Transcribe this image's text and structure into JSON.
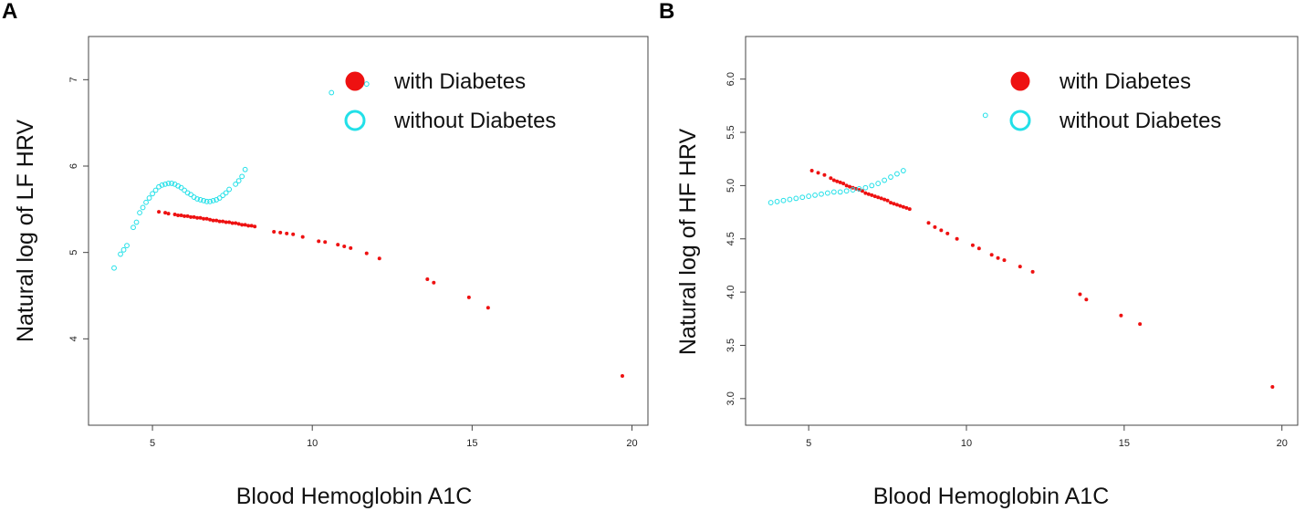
{
  "colors": {
    "with": "#ee1111",
    "without": "#22e0e8"
  },
  "chart_data": [
    {
      "type": "scatter",
      "panel": "A",
      "xlabel": "Blood Hemoglobin A1C",
      "ylabel": "Natural log of LF HRV",
      "xlim": [
        3.0,
        20.5
      ],
      "ylim": [
        3.0,
        7.5
      ],
      "xticks": [
        5,
        10,
        15,
        20
      ],
      "yticks": [
        4,
        5,
        6,
        7
      ],
      "legend": {
        "placement": "top-right",
        "entries": [
          "with Diabetes",
          "without Diabetes"
        ]
      },
      "series": [
        {
          "name": "with Diabetes",
          "marker": "filled",
          "x": [
            5.2,
            5.4,
            5.5,
            5.7,
            5.8,
            5.9,
            6.0,
            6.1,
            6.2,
            6.3,
            6.4,
            6.5,
            6.6,
            6.7,
            6.8,
            6.9,
            7.0,
            7.1,
            7.2,
            7.3,
            7.4,
            7.5,
            7.6,
            7.7,
            7.8,
            7.9,
            8.0,
            8.1,
            8.2,
            8.8,
            9.0,
            9.2,
            9.4,
            9.7,
            10.2,
            10.4,
            10.8,
            11.0,
            11.2,
            11.7,
            12.1,
            13.6,
            13.8,
            14.9,
            15.5,
            19.7
          ],
          "y": [
            5.47,
            5.46,
            5.45,
            5.44,
            5.43,
            5.43,
            5.42,
            5.42,
            5.41,
            5.41,
            5.4,
            5.4,
            5.39,
            5.39,
            5.38,
            5.37,
            5.37,
            5.36,
            5.36,
            5.35,
            5.35,
            5.34,
            5.34,
            5.33,
            5.32,
            5.32,
            5.31,
            5.31,
            5.3,
            5.24,
            5.23,
            5.22,
            5.21,
            5.18,
            5.13,
            5.12,
            5.09,
            5.07,
            5.05,
            4.99,
            4.93,
            4.69,
            4.65,
            4.48,
            4.36,
            3.57
          ]
        },
        {
          "name": "without Diabetes",
          "marker": "open",
          "x": [
            3.8,
            4.0,
            4.1,
            4.2,
            4.4,
            4.5,
            4.6,
            4.7,
            4.8,
            4.9,
            5.0,
            5.1,
            5.2,
            5.3,
            5.4,
            5.5,
            5.6,
            5.7,
            5.8,
            5.9,
            6.0,
            6.1,
            6.2,
            6.3,
            6.4,
            6.5,
            6.6,
            6.7,
            6.8,
            6.9,
            7.0,
            7.1,
            7.2,
            7.3,
            7.4,
            7.6,
            7.7,
            7.8,
            7.9,
            10.6,
            11.7
          ],
          "y": [
            4.82,
            4.98,
            5.03,
            5.08,
            5.29,
            5.35,
            5.46,
            5.52,
            5.58,
            5.63,
            5.68,
            5.72,
            5.76,
            5.78,
            5.79,
            5.8,
            5.8,
            5.79,
            5.77,
            5.75,
            5.72,
            5.69,
            5.67,
            5.64,
            5.62,
            5.61,
            5.6,
            5.59,
            5.59,
            5.6,
            5.61,
            5.63,
            5.66,
            5.69,
            5.73,
            5.79,
            5.83,
            5.88,
            5.96,
            6.85,
            6.95
          ]
        }
      ]
    },
    {
      "type": "scatter",
      "panel": "B",
      "xlabel": "Blood Hemoglobin A1C",
      "ylabel": "Natural log of HF HRV",
      "xlim": [
        3.0,
        20.5
      ],
      "ylim": [
        2.75,
        6.4
      ],
      "xticks": [
        5,
        10,
        15,
        20
      ],
      "yticks": [
        3.0,
        3.5,
        4.0,
        4.5,
        5.0,
        5.5,
        6.0
      ],
      "legend": {
        "placement": "top-right",
        "entries": [
          "with Diabetes",
          "without Diabetes"
        ]
      },
      "series": [
        {
          "name": "with Diabetes",
          "marker": "filled",
          "x": [
            5.1,
            5.3,
            5.5,
            5.7,
            5.8,
            5.9,
            6.0,
            6.1,
            6.2,
            6.3,
            6.4,
            6.5,
            6.6,
            6.7,
            6.8,
            6.9,
            7.0,
            7.1,
            7.2,
            7.3,
            7.4,
            7.5,
            7.6,
            7.7,
            7.8,
            7.9,
            8.0,
            8.1,
            8.2,
            8.8,
            9.0,
            9.2,
            9.4,
            9.7,
            10.2,
            10.4,
            10.8,
            11.0,
            11.2,
            11.7,
            12.1,
            13.6,
            13.8,
            14.9,
            15.5,
            19.7
          ],
          "y": [
            5.14,
            5.12,
            5.1,
            5.07,
            5.05,
            5.04,
            5.03,
            5.02,
            5.0,
            4.99,
            4.98,
            4.97,
            4.96,
            4.95,
            4.93,
            4.92,
            4.91,
            4.9,
            4.89,
            4.88,
            4.87,
            4.86,
            4.84,
            4.83,
            4.82,
            4.81,
            4.8,
            4.79,
            4.78,
            4.65,
            4.61,
            4.58,
            4.55,
            4.5,
            4.44,
            4.41,
            4.35,
            4.32,
            4.3,
            4.24,
            4.19,
            3.98,
            3.93,
            3.78,
            3.7,
            3.11
          ]
        },
        {
          "name": "without Diabetes",
          "marker": "open",
          "x": [
            3.8,
            4.0,
            4.2,
            4.4,
            4.6,
            4.8,
            5.0,
            5.2,
            5.4,
            5.6,
            5.8,
            6.0,
            6.2,
            6.4,
            6.6,
            6.8,
            7.0,
            7.2,
            7.4,
            7.6,
            7.8,
            8.0,
            10.6
          ],
          "y": [
            4.84,
            4.85,
            4.86,
            4.87,
            4.88,
            4.89,
            4.9,
            4.91,
            4.92,
            4.93,
            4.94,
            4.94,
            4.95,
            4.96,
            4.97,
            4.98,
            5.0,
            5.02,
            5.05,
            5.08,
            5.11,
            5.14,
            5.66
          ]
        }
      ]
    }
  ]
}
